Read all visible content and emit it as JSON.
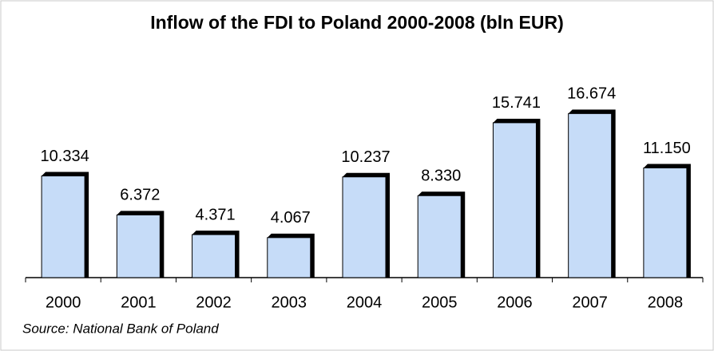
{
  "chart_data": {
    "type": "bar",
    "title": "Inflow of the FDI to Poland 2000-2008 (bln EUR)",
    "categories": [
      "2000",
      "2001",
      "2002",
      "2003",
      "2004",
      "2005",
      "2006",
      "2007",
      "2008"
    ],
    "values": [
      10.334,
      6.372,
      4.371,
      4.067,
      10.237,
      8.33,
      15.741,
      16.674,
      11.15
    ],
    "value_labels": [
      "10.334",
      "6.372",
      "4.371",
      "4.067",
      "10.237",
      "8.330",
      "15.741",
      "16.674",
      "11.150"
    ],
    "color": "#c6dcf8",
    "ylim": [
      0,
      18
    ],
    "source": "Source: National Bank of Poland"
  }
}
